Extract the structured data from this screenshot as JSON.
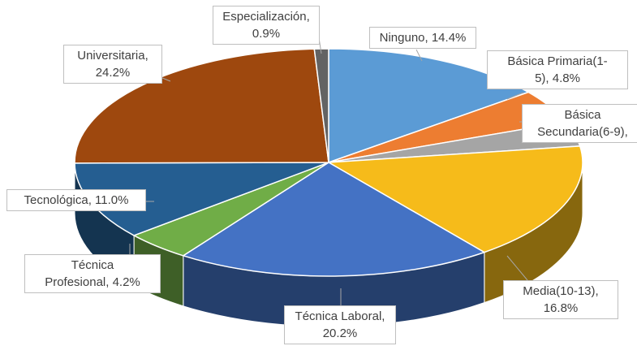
{
  "chart_data": {
    "type": "pie3d",
    "value_labels": [
      "Ninguno, 14.4%",
      "Básica Primaria(1-\n5), 4.8%",
      "Básica\nSecundaria(6-9),",
      "Media(10-13),\n16.8%",
      "Técnica Laboral,\n20.2%",
      "Técnica\nProfesional, 4.2%",
      "Tecnológica, 11.0%",
      "Universitaria,\n24.2%",
      "Especialización,\n0.9%"
    ],
    "values": [
      14.4,
      4.8,
      3.5,
      16.8,
      20.2,
      4.2,
      11.0,
      24.2,
      0.9
    ],
    "colors": [
      "#5b9bd5",
      "#ed7d31",
      "#a5a5a5",
      "#f6bb1a",
      "#4472c4",
      "#70ad47",
      "#255e91",
      "#9e480e",
      "#636363"
    ]
  }
}
